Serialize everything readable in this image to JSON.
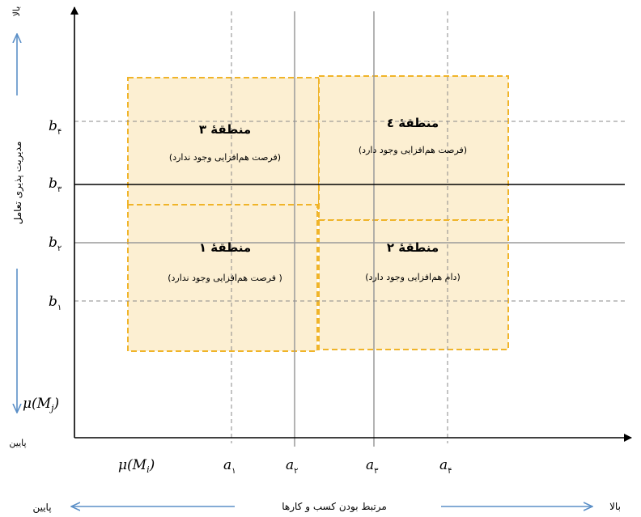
{
  "axes": {
    "x_axis_label": "مرتبط بودن کسب و کارها",
    "y_axis_label": "مدیریت پذیری تعامل",
    "x_low": "پایین",
    "x_high": "بالا",
    "y_low": "پایین",
    "y_high": "بالا",
    "x_origin_label": {
      "base": "μ(M",
      "sub": "i",
      "close": ")"
    },
    "y_origin_label": {
      "base": "μ(M",
      "sub": "j",
      "close": ")"
    }
  },
  "x_ticks": [
    {
      "var": "a",
      "sub": "۱"
    },
    {
      "var": "a",
      "sub": "۲"
    },
    {
      "var": "a",
      "sub": "۳"
    },
    {
      "var": "a",
      "sub": "۴"
    }
  ],
  "y_ticks": [
    {
      "var": "b",
      "sub": "۴"
    },
    {
      "var": "b",
      "sub": "۳"
    },
    {
      "var": "b",
      "sub": "۲"
    },
    {
      "var": "b",
      "sub": "۱"
    }
  ],
  "regions": [
    {
      "title": "منطقۀ ۳",
      "desc": "(فرصت هم‌افزایی وجود ندارد)"
    },
    {
      "title": "منطقۀ ٤",
      "desc": "(فرصت هم‌افزایی وجود دارد)"
    },
    {
      "title": "منطقۀ ۱",
      "desc": "( فرصت هم‌افزایی وجود ندارد)"
    },
    {
      "title": "منطقۀ ۲",
      "desc": "(دام هم‌افزایی وجود دارد)"
    }
  ],
  "colors": {
    "region_fill": "#fcefd2",
    "region_border": "#f0b429",
    "arrow_blue": "#5b8fc7",
    "axis": "#000000",
    "dashed": "#8a8a8a",
    "solid_grid": "#9a9a9a"
  }
}
